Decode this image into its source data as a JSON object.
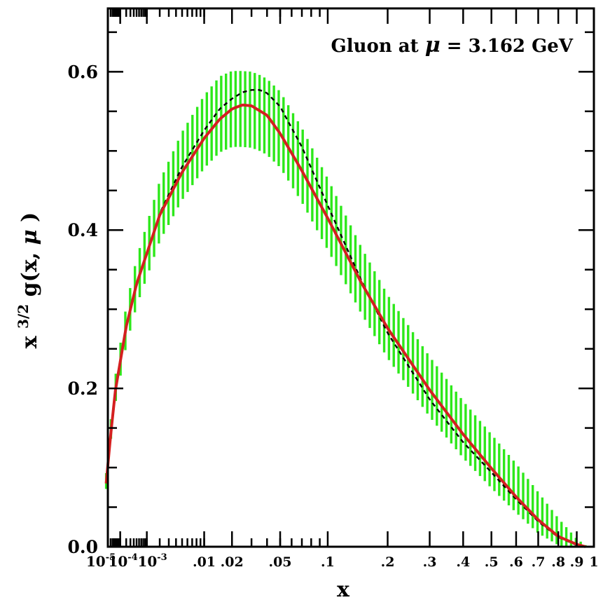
{
  "chart_data": {
    "type": "line",
    "title": "",
    "annotation": {
      "prefix": "Gluon at",
      "symbol": "μ",
      "equals": "=",
      "value": "3.162",
      "unit": "GeV"
    },
    "xlabel": "x",
    "ylabel": {
      "base": "x",
      "exponent": "3/2",
      "func": "g(x,",
      "symbol": "μ",
      "close": ")"
    },
    "x_scale": "x^(1/3)",
    "xlim": [
      1e-05,
      1
    ],
    "ylim": [
      0,
      0.68
    ],
    "x_ticks": [
      {
        "value": 1e-05,
        "base": "10",
        "exp": "-5"
      },
      {
        "value": 0.0001,
        "base": "10",
        "exp": "-4"
      },
      {
        "value": 0.001,
        "base": "10",
        "exp": "-3"
      },
      {
        "value": 0.01,
        "label": ".01"
      },
      {
        "value": 0.02,
        "label": ".02"
      },
      {
        "value": 0.05,
        "label": ".05"
      },
      {
        "value": 0.1,
        "label": ".1"
      },
      {
        "value": 0.2,
        "label": ".2"
      },
      {
        "value": 0.3,
        "label": ".3"
      },
      {
        "value": 0.4,
        "label": ".4"
      },
      {
        "value": 0.5,
        "label": ".5"
      },
      {
        "value": 0.6,
        "label": ".6"
      },
      {
        "value": 0.7,
        "label": ".7"
      },
      {
        "value": 0.8,
        "label": ".8"
      },
      {
        "value": 0.9,
        "label": ".9"
      },
      {
        "value": 1.0,
        "label": "1"
      }
    ],
    "y_ticks": [
      {
        "value": 0.0,
        "label": "0.0"
      },
      {
        "value": 0.2,
        "label": "0.2"
      },
      {
        "value": 0.4,
        "label": "0.4"
      },
      {
        "value": 0.6,
        "label": "0.6"
      }
    ],
    "grid": false,
    "colors": {
      "central": "#d42020",
      "reference": "#000000",
      "band": "#2de81a",
      "axes": "#000000"
    },
    "series": [
      {
        "style": "solid",
        "x": [
          6e-06,
          2e-05,
          5e-05,
          0.0002,
          0.0005,
          0.002,
          0.005,
          0.01,
          0.015,
          0.02,
          0.025,
          0.03,
          0.04,
          0.05,
          0.07,
          0.1,
          0.15,
          0.2,
          0.3,
          0.4,
          0.5,
          0.6,
          0.7,
          0.8,
          0.9,
          0.95
        ],
        "y": [
          0.08,
          0.141,
          0.198,
          0.278,
          0.332,
          0.419,
          0.473,
          0.516,
          0.54,
          0.553,
          0.558,
          0.557,
          0.545,
          0.522,
          0.475,
          0.415,
          0.334,
          0.276,
          0.198,
          0.142,
          0.099,
          0.063,
          0.034,
          0.013,
          0.003,
          0.0
        ]
      },
      {
        "style": "dashed",
        "x": [
          6e-06,
          2e-05,
          5e-05,
          0.0002,
          0.0005,
          0.002,
          0.005,
          0.01,
          0.015,
          0.02,
          0.025,
          0.03,
          0.035,
          0.04,
          0.05,
          0.07,
          0.1,
          0.15,
          0.2,
          0.3,
          0.4,
          0.5,
          0.6,
          0.7,
          0.8,
          0.9,
          0.95
        ],
        "y": [
          0.082,
          0.141,
          0.196,
          0.276,
          0.33,
          0.421,
          0.48,
          0.526,
          0.553,
          0.566,
          0.574,
          0.577,
          0.577,
          0.573,
          0.556,
          0.505,
          0.431,
          0.337,
          0.27,
          0.186,
          0.132,
          0.094,
          0.06,
          0.032,
          0.012,
          0.002,
          0.0
        ]
      }
    ],
    "band": {
      "x": [
        6e-06,
        2e-05,
        5e-05,
        0.0002,
        0.0005,
        0.002,
        0.005,
        0.01,
        0.015,
        0.02,
        0.025,
        0.03,
        0.035,
        0.04,
        0.05,
        0.07,
        0.1,
        0.15,
        0.2,
        0.3,
        0.4,
        0.5,
        0.6,
        0.7,
        0.8,
        0.9,
        0.95
      ],
      "center": [
        0.083,
        0.145,
        0.199,
        0.279,
        0.334,
        0.424,
        0.481,
        0.524,
        0.546,
        0.553,
        0.553,
        0.552,
        0.548,
        0.543,
        0.527,
        0.482,
        0.42,
        0.337,
        0.278,
        0.202,
        0.148,
        0.108,
        0.074,
        0.043,
        0.019,
        0.004,
        0.0
      ],
      "halfwidth": [
        0.01,
        0.012,
        0.017,
        0.025,
        0.03,
        0.038,
        0.043,
        0.046,
        0.048,
        0.048,
        0.048,
        0.048,
        0.048,
        0.048,
        0.048,
        0.047,
        0.045,
        0.042,
        0.04,
        0.038,
        0.036,
        0.034,
        0.031,
        0.026,
        0.017,
        0.006,
        0.002
      ]
    }
  }
}
